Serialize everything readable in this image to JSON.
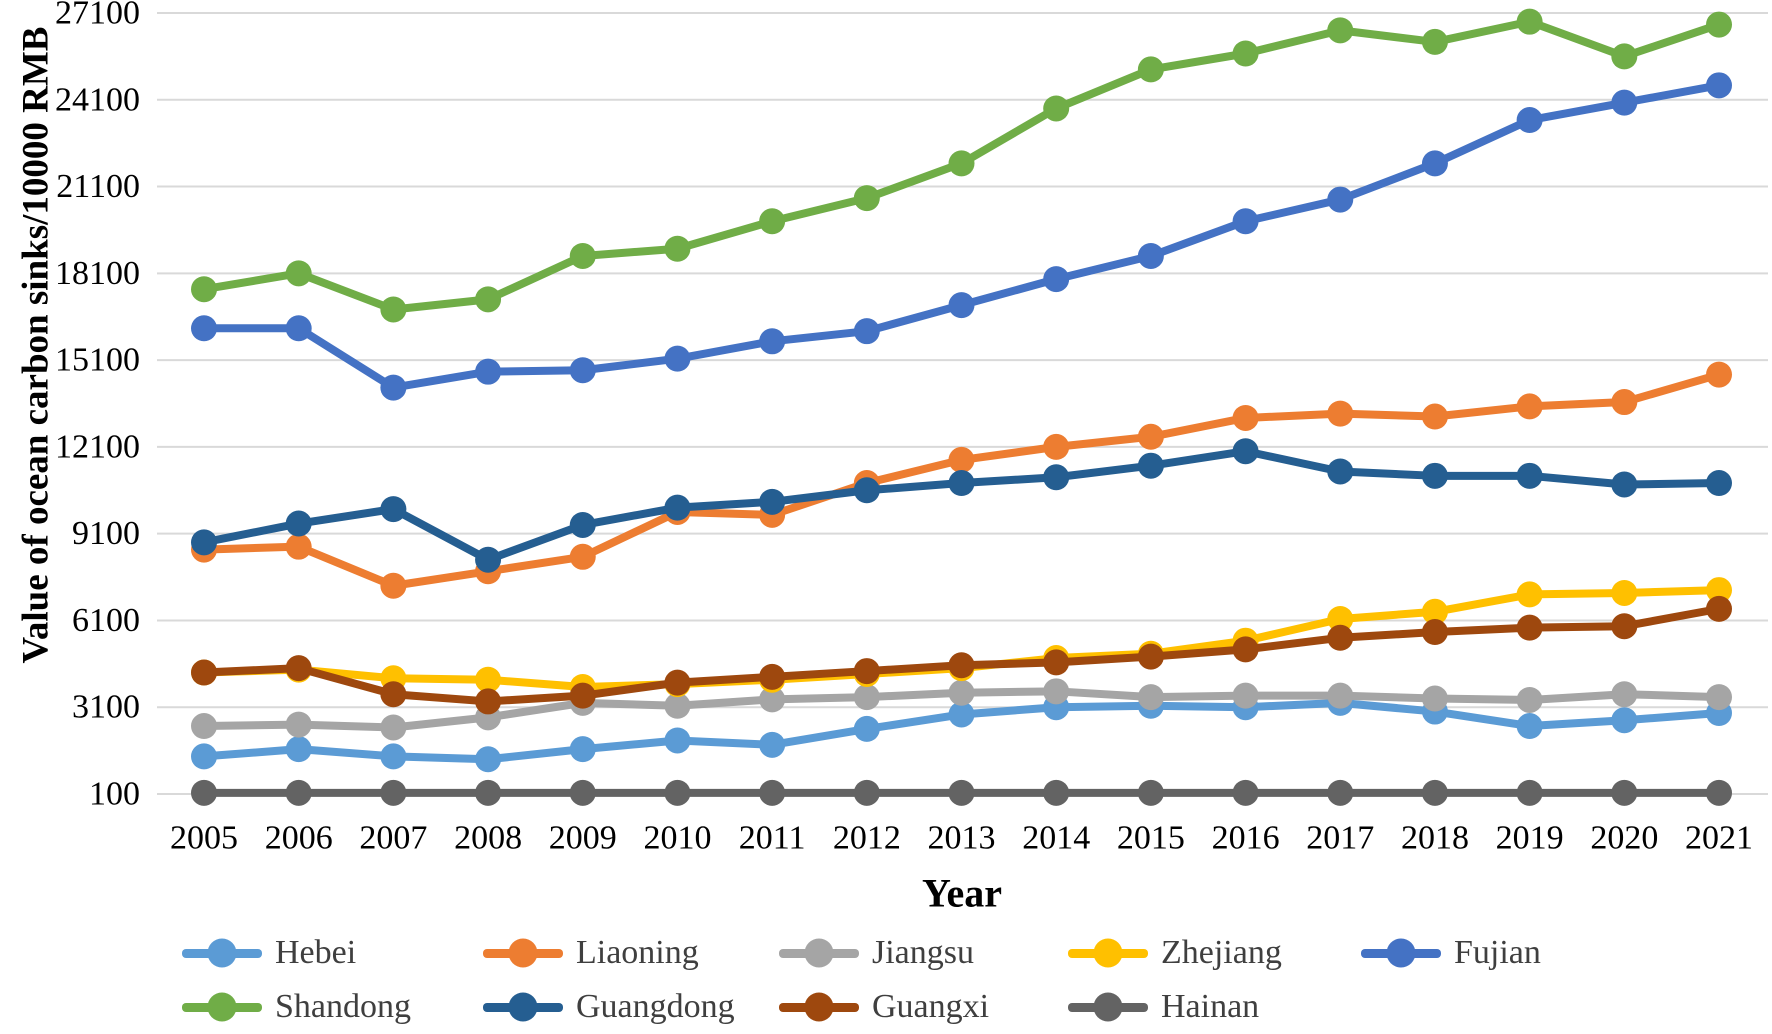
{
  "figure": {
    "legend_rows": [
      [
        "Hebei",
        "Liaoning",
        "Jiangsu",
        "Zhejiang",
        "Fujian"
      ],
      [
        "Shandong",
        "Guangdong",
        "Guangxi",
        "Hainan"
      ]
    ]
  },
  "chart_data": {
    "type": "line",
    "title": "",
    "xlabel": "Year",
    "ylabel": "Value of ocean carbon sinks/10000 RMB",
    "x": [
      2005,
      2006,
      2007,
      2008,
      2009,
      2010,
      2011,
      2012,
      2013,
      2014,
      2015,
      2016,
      2017,
      2018,
      2019,
      2020,
      2021
    ],
    "ylim": [
      100,
      27100
    ],
    "yticks": [
      27100,
      24100,
      21100,
      18100,
      15100,
      12100,
      9100,
      6100,
      3100,
      100
    ],
    "grid": true,
    "grid_color": "#D9D9D9",
    "legend_position": "bottom",
    "series": [
      {
        "name": "Hebei",
        "color": "#5B9BD5",
        "values": [
          1400,
          1650,
          1400,
          1300,
          1650,
          1950,
          1800,
          2350,
          2850,
          3100,
          3150,
          3100,
          3250,
          2950,
          2450,
          2650,
          2900
        ]
      },
      {
        "name": "Liaoning",
        "color": "#ED7D31",
        "values": [
          8550,
          8650,
          7300,
          7800,
          8300,
          9850,
          9750,
          10850,
          11650,
          12100,
          12450,
          13100,
          13250,
          13150,
          13500,
          13650,
          14600
        ]
      },
      {
        "name": "Jiangsu",
        "color": "#A5A5A5",
        "values": [
          2450,
          2500,
          2400,
          2750,
          3250,
          3150,
          3370,
          3450,
          3600,
          3650,
          3450,
          3500,
          3500,
          3400,
          3350,
          3550,
          3450
        ]
      },
      {
        "name": "Zhejiang",
        "color": "#FFC000",
        "values": [
          4300,
          4400,
          4100,
          4050,
          3800,
          3900,
          4050,
          4250,
          4450,
          4800,
          4950,
          5400,
          6150,
          6400,
          7000,
          7050,
          7150
        ]
      },
      {
        "name": "Fujian",
        "color": "#4472C4",
        "values": [
          16200,
          16200,
          14150,
          14700,
          14750,
          15150,
          15750,
          16100,
          17000,
          17900,
          18700,
          19900,
          20650,
          21900,
          23400,
          24000,
          24600
        ]
      },
      {
        "name": "Shandong",
        "color": "#70AD47",
        "values": [
          17550,
          18100,
          16850,
          17200,
          18700,
          18950,
          19900,
          20700,
          21900,
          23800,
          25150,
          25700,
          26500,
          26100,
          26800,
          25600,
          26700
        ]
      },
      {
        "name": "Guangdong",
        "color": "#255E91",
        "values": [
          8800,
          9450,
          9950,
          8200,
          9400,
          10000,
          10200,
          10600,
          10850,
          11050,
          11450,
          11950,
          11250,
          11100,
          11100,
          10800,
          10850
        ]
      },
      {
        "name": "Guangxi",
        "color": "#9E480E",
        "values": [
          4300,
          4450,
          3550,
          3300,
          3500,
          3950,
          4150,
          4350,
          4550,
          4650,
          4850,
          5100,
          5500,
          5700,
          5850,
          5900,
          6500
        ]
      },
      {
        "name": "Hainan",
        "color": "#636363",
        "values": [
          140,
          140,
          140,
          140,
          140,
          140,
          140,
          140,
          140,
          140,
          140,
          140,
          140,
          140,
          140,
          140,
          140
        ]
      }
    ]
  }
}
